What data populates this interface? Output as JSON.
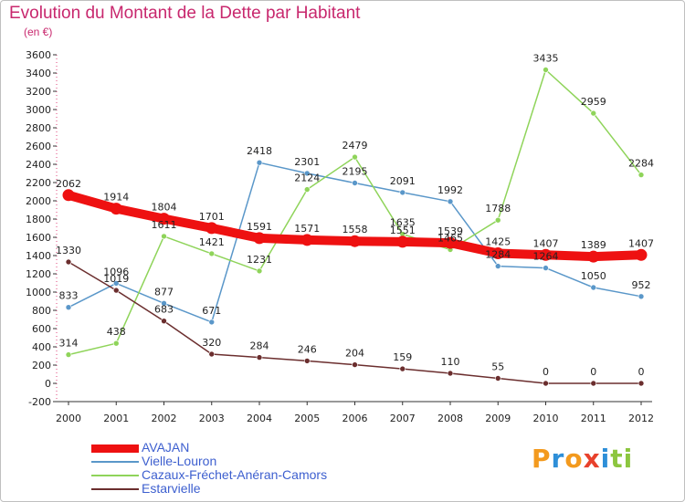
{
  "header": {
    "title": "Evolution du Montant de la Dette par Habitant",
    "unit": "(en €)"
  },
  "brand": {
    "letters": [
      "P",
      "r",
      "o",
      "x",
      "i",
      "t",
      "i"
    ],
    "colors": [
      "#f39a1e",
      "#2e8fd8",
      "#f39a1e",
      "#e8412c",
      "#2e8fd8",
      "#8cc63f",
      "#8cc63f"
    ]
  },
  "chart_data": {
    "type": "line",
    "title": "Evolution du Montant de la Dette par Habitant",
    "subtitle": "(en €)",
    "categories": [
      "2000",
      "2001",
      "2002",
      "2003",
      "2004",
      "2005",
      "2006",
      "2007",
      "2008",
      "2009",
      "2010",
      "2011",
      "2012"
    ],
    "ylim": [
      -200,
      3600
    ],
    "yticks": [
      -200,
      0,
      200,
      400,
      600,
      800,
      1000,
      1200,
      1400,
      1600,
      1800,
      2000,
      2200,
      2400,
      2600,
      2800,
      3000,
      3200,
      3400,
      3600
    ],
    "grid": false,
    "legend_position": "bottom-left",
    "series": [
      {
        "name": "AVAJAN",
        "color": "#ee1111",
        "values": [
          2062,
          1914,
          1804,
          1701,
          1591,
          1571,
          1558,
          1551,
          1539,
          1425,
          1407,
          1389,
          1407
        ]
      },
      {
        "name": "Vielle-Louron",
        "color": "#5a97c9",
        "values": [
          833,
          1096,
          877,
          671,
          2418,
          2301,
          2195,
          2091,
          1992,
          1284,
          1264,
          1050,
          952
        ]
      },
      {
        "name": "Cazaux-Fréchet-Anéran-Camors",
        "color": "#8fd45a",
        "values": [
          314,
          438,
          1611,
          1421,
          1231,
          2124,
          2479,
          1635,
          1465,
          1788,
          3435,
          2959,
          2284
        ]
      },
      {
        "name": "Estarvielle",
        "color": "#6b2e2e",
        "values": [
          1330,
          1019,
          683,
          320,
          284,
          246,
          204,
          159,
          110,
          55,
          0,
          0,
          0
        ]
      }
    ]
  }
}
